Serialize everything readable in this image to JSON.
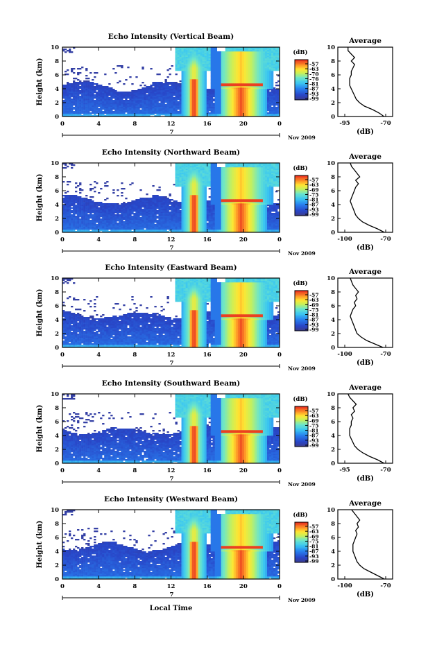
{
  "figure": {
    "xlabel": "Local Time",
    "date_label": "Nov 2009",
    "day_label": "7",
    "colorbar_unit": "(dB)",
    "average_title": "Average",
    "average_xlabel": "(dB)"
  },
  "chart_data": [
    {
      "type": "heatmap",
      "title": "Echo Intensity (Vertical Beam)",
      "ylabel": "Height (km)",
      "xlabel": "",
      "x_ticks": [
        "0",
        "4",
        "8",
        "12",
        "16",
        "20",
        "0"
      ],
      "y_ticks": [
        "0",
        "2",
        "4",
        "6",
        "8",
        "10"
      ],
      "xlim": [
        0,
        24
      ],
      "ylim": [
        0,
        10
      ],
      "colorbar_ticks": [
        "-57",
        "-63",
        "-70",
        "-76",
        "-81",
        "-87",
        "-93",
        "-99"
      ],
      "colorbar_range": [
        -99,
        -57
      ],
      "features": [
        {
          "desc": "low-level background echo",
          "time": [
            0,
            24
          ],
          "height": [
            0,
            4.5
          ],
          "dB": -95
        },
        {
          "desc": "intense convective column",
          "time": [
            13.8,
            15.3
          ],
          "height": [
            0,
            8.5
          ],
          "dB": -57
        },
        {
          "desc": "second convective system",
          "time": [
            18.5,
            21
          ],
          "height": [
            0,
            9.5
          ],
          "dB": -70
        }
      ],
      "average": {
        "xlim": [
          -95,
          -70
        ],
        "xticks": [
          "-95",
          "-70"
        ],
        "height": [
          0,
          0.5,
          1,
          1.5,
          2,
          2.5,
          3,
          3.5,
          4,
          4.5,
          5,
          5.5,
          6,
          6.5,
          7,
          7.5,
          8,
          8.5,
          9,
          9.5,
          10
        ],
        "dB": [
          -71,
          -74,
          -78,
          -83,
          -86,
          -88,
          -89,
          -90,
          -91,
          -92,
          -92,
          -92,
          -91,
          -91,
          -90,
          -89,
          -91,
          -89,
          -91,
          -93,
          -93
        ]
      }
    },
    {
      "type": "heatmap",
      "title": "Echo Intensity (Northward Beam)",
      "ylabel": "Height (km)",
      "xlabel": "",
      "x_ticks": [
        "0",
        "4",
        "8",
        "12",
        "16",
        "20",
        "0"
      ],
      "y_ticks": [
        "0",
        "2",
        "4",
        "6",
        "8",
        "10"
      ],
      "xlim": [
        0,
        24
      ],
      "ylim": [
        0,
        10
      ],
      "colorbar_ticks": [
        "-57",
        "-63",
        "-69",
        "-75",
        "-81",
        "-87",
        "-93",
        "-99"
      ],
      "colorbar_range": [
        -99,
        -57
      ],
      "features": [
        {
          "desc": "low-level background echo",
          "time": [
            0,
            24
          ],
          "height": [
            0,
            4.8
          ],
          "dB": -95
        },
        {
          "desc": "intense convective column",
          "time": [
            13.8,
            15.3
          ],
          "height": [
            0,
            8.5
          ],
          "dB": -57
        },
        {
          "desc": "second convective system",
          "time": [
            18.5,
            21
          ],
          "height": [
            0,
            9.5
          ],
          "dB": -70
        }
      ],
      "average": {
        "xlim": [
          -100,
          -70
        ],
        "xticks": [
          "-100",
          "-70"
        ],
        "height": [
          0,
          0.5,
          1,
          1.5,
          2,
          2.5,
          3,
          3.5,
          4,
          4.5,
          5,
          5.5,
          6,
          6.5,
          7,
          7.5,
          8,
          8.5,
          9,
          9.5,
          10
        ],
        "dB": [
          -71,
          -76,
          -82,
          -87,
          -90,
          -92,
          -93,
          -94,
          -95,
          -96,
          -95,
          -94,
          -93,
          -92,
          -90,
          -92,
          -89,
          -91,
          -93,
          -95,
          -96
        ]
      }
    },
    {
      "type": "heatmap",
      "title": "Echo Intensity (Eastward Beam)",
      "ylabel": "Height (km)",
      "xlabel": "",
      "x_ticks": [
        "0",
        "4",
        "8",
        "12",
        "16",
        "20",
        "0"
      ],
      "y_ticks": [
        "0",
        "2",
        "4",
        "6",
        "8",
        "10"
      ],
      "xlim": [
        0,
        24
      ],
      "ylim": [
        0,
        10
      ],
      "colorbar_ticks": [
        "-57",
        "-63",
        "-69",
        "-75",
        "-81",
        "-87",
        "-93",
        "-99"
      ],
      "colorbar_range": [
        -99,
        -57
      ],
      "features": [
        {
          "desc": "low-level background echo",
          "time": [
            0,
            24
          ],
          "height": [
            0,
            4.8
          ],
          "dB": -95
        },
        {
          "desc": "intense convective column",
          "time": [
            13.8,
            15.3
          ],
          "height": [
            0,
            8.5
          ],
          "dB": -57
        },
        {
          "desc": "second convective system",
          "time": [
            18.5,
            21
          ],
          "height": [
            0,
            9.5
          ],
          "dB": -70
        }
      ],
      "average": {
        "xlim": [
          -100,
          -70
        ],
        "xticks": [
          "-100",
          "-70"
        ],
        "height": [
          0,
          0.5,
          1,
          1.5,
          2,
          2.5,
          3,
          3.5,
          4,
          4.5,
          5,
          5.5,
          6,
          6.5,
          7,
          7.5,
          8,
          8.5,
          9,
          9.5,
          10
        ],
        "dB": [
          -72,
          -78,
          -84,
          -88,
          -91,
          -92,
          -93,
          -94,
          -95,
          -96,
          -95,
          -94,
          -92,
          -93,
          -91,
          -92,
          -90,
          -92,
          -94,
          -95,
          -96
        ]
      }
    },
    {
      "type": "heatmap",
      "title": "Echo Intensity (Southward Beam)",
      "ylabel": "Height (km)",
      "xlabel": "",
      "x_ticks": [
        "0",
        "4",
        "8",
        "12",
        "16",
        "20",
        "0"
      ],
      "y_ticks": [
        "0",
        "2",
        "4",
        "6",
        "8",
        "10"
      ],
      "xlim": [
        0,
        24
      ],
      "ylim": [
        0,
        10
      ],
      "colorbar_ticks": [
        "-57",
        "-63",
        "-69",
        "-75",
        "-81",
        "-87",
        "-93",
        "-99"
      ],
      "colorbar_range": [
        -99,
        -57
      ],
      "features": [
        {
          "desc": "low-level background echo",
          "time": [
            0,
            24
          ],
          "height": [
            0,
            4.8
          ],
          "dB": -95
        },
        {
          "desc": "intense convective column",
          "time": [
            13.8,
            15.3
          ],
          "height": [
            0,
            8.5
          ],
          "dB": -57
        },
        {
          "desc": "second convective system",
          "time": [
            18.5,
            21
          ],
          "height": [
            0,
            9.5
          ],
          "dB": -65
        }
      ],
      "average": {
        "xlim": [
          -95,
          -70
        ],
        "xticks": [
          "-95",
          "-70"
        ],
        "height": [
          0,
          0.5,
          1,
          1.5,
          2,
          2.5,
          3,
          3.5,
          4,
          4.5,
          5,
          5.5,
          6,
          6.5,
          7,
          7.5,
          8,
          8.5,
          9,
          9.5,
          10
        ],
        "dB": [
          -71,
          -75,
          -80,
          -84,
          -87,
          -89,
          -90,
          -91,
          -92,
          -92,
          -92,
          -91,
          -91,
          -90,
          -91,
          -89,
          -90,
          -88,
          -90,
          -92,
          -93
        ]
      }
    },
    {
      "type": "heatmap",
      "title": "Echo Intensity (Westward Beam)",
      "ylabel": "Height (km)",
      "xlabel": "",
      "x_ticks": [
        "0",
        "4",
        "8",
        "12",
        "16",
        "20",
        "0"
      ],
      "y_ticks": [
        "0",
        "2",
        "4",
        "6",
        "8",
        "10"
      ],
      "xlim": [
        0,
        24
      ],
      "ylim": [
        0,
        10
      ],
      "colorbar_ticks": [
        "-57",
        "-63",
        "-69",
        "-75",
        "-81",
        "-87",
        "-93",
        "-99"
      ],
      "colorbar_range": [
        -99,
        -57
      ],
      "features": [
        {
          "desc": "low-level background echo",
          "time": [
            0,
            24
          ],
          "height": [
            0,
            4.8
          ],
          "dB": -95
        },
        {
          "desc": "intense convective column",
          "time": [
            13.8,
            15.3
          ],
          "height": [
            0,
            8.5
          ],
          "dB": -57
        },
        {
          "desc": "second convective system",
          "time": [
            18.5,
            21
          ],
          "height": [
            0,
            9.5
          ],
          "dB": -65
        }
      ],
      "average": {
        "xlim": [
          -100,
          -70
        ],
        "xticks": [
          "-100",
          "-70"
        ],
        "height": [
          0,
          0.5,
          1,
          1.5,
          2,
          2.5,
          3,
          3.5,
          4,
          4.5,
          5,
          5.5,
          6,
          6.5,
          7,
          7.5,
          8,
          8.5,
          9,
          9.5,
          10
        ],
        "dB": [
          -71,
          -76,
          -81,
          -86,
          -89,
          -91,
          -92,
          -93,
          -94,
          -94,
          -94,
          -93,
          -92,
          -91,
          -92,
          -90,
          -91,
          -89,
          -91,
          -93,
          -95
        ]
      }
    }
  ]
}
